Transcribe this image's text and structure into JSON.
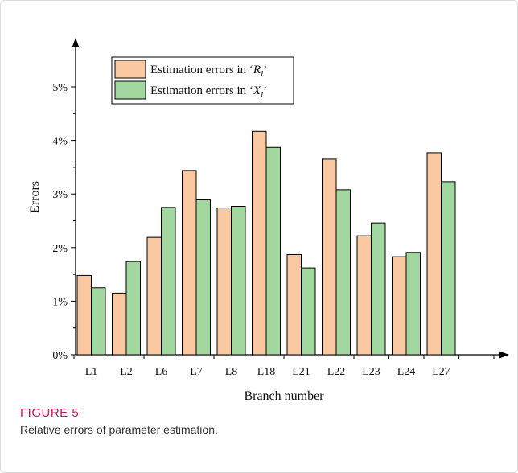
{
  "chart_data": {
    "type": "bar",
    "xlabel": "Branch number",
    "ylabel": "Errors",
    "categories": [
      "L1",
      "L2",
      "L6",
      "L7",
      "L8",
      "L18",
      "L21",
      "L22",
      "L23",
      "L24",
      "L27"
    ],
    "ylim": [
      0,
      5.6
    ],
    "yticks": [
      "0%",
      "1%",
      "2%",
      "3%",
      "4%",
      "5%"
    ],
    "legend_position": "top-left",
    "grid": false,
    "series": [
      {
        "name": "Estimation errors in ‘Rₗ’",
        "legend_prefix": "Estimation errors in ‘",
        "legend_symbol": "R",
        "legend_sub": "l",
        "legend_suffix": "’",
        "color": "#f9c8a0",
        "values": [
          1.48,
          1.15,
          2.19,
          3.44,
          2.74,
          4.17,
          1.87,
          3.65,
          2.22,
          1.83,
          3.77
        ]
      },
      {
        "name": "Estimation errors in ‘Xₗ’",
        "legend_prefix": "Estimation errors in ‘",
        "legend_symbol": "X",
        "legend_sub": "l",
        "legend_suffix": "’",
        "color": "#a3d7a0",
        "values": [
          1.25,
          1.74,
          2.75,
          2.89,
          2.77,
          3.87,
          1.62,
          3.08,
          2.46,
          1.91,
          3.23
        ]
      }
    ]
  },
  "caption": {
    "label": "FIGURE 5",
    "text": "Relative errors of parameter estimation."
  }
}
